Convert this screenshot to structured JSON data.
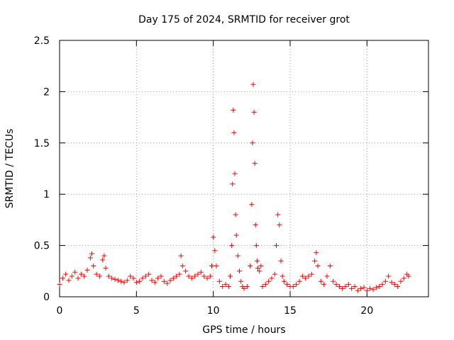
{
  "chart_data": {
    "type": "scatter",
    "title": "Day 175 of 2024, SRMTID for receiver grot",
    "xlabel": "GPS time / hours",
    "ylabel": "SRMTID / TECUs",
    "xlim": [
      0,
      24
    ],
    "ylim": [
      0,
      2.5
    ],
    "xticks": [
      0,
      5,
      10,
      15,
      20
    ],
    "xtick_labels": [
      "0",
      "5",
      "10",
      "15",
      "20"
    ],
    "yticks": [
      0,
      0.5,
      1,
      1.5,
      2,
      2.5
    ],
    "ytick_labels": [
      "0",
      "0.5",
      "1",
      "1.5",
      "2",
      "2.5"
    ],
    "grid": true,
    "marker": "+",
    "series": [
      {
        "name": "SRMTID",
        "color": "#ff0000",
        "x": [
          0.0,
          0.2,
          0.4,
          0.6,
          0.8,
          1.0,
          1.2,
          1.4,
          1.6,
          1.8,
          2.0,
          2.1,
          2.2,
          2.4,
          2.6,
          2.8,
          2.9,
          3.0,
          3.2,
          3.4,
          3.6,
          3.8,
          4.0,
          4.2,
          4.4,
          4.6,
          4.8,
          5.0,
          5.2,
          5.4,
          5.6,
          5.8,
          6.0,
          6.2,
          6.4,
          6.6,
          6.8,
          7.0,
          7.2,
          7.4,
          7.6,
          7.8,
          7.9,
          8.0,
          8.2,
          8.4,
          8.6,
          8.8,
          9.0,
          9.2,
          9.4,
          9.6,
          9.8,
          9.9,
          10.0,
          10.1,
          10.2,
          10.4,
          10.6,
          10.8,
          11.0,
          11.1,
          11.2,
          11.25,
          11.3,
          11.35,
          11.4,
          11.45,
          11.5,
          11.6,
          11.7,
          11.8,
          11.9,
          12.0,
          12.2,
          12.4,
          12.5,
          12.55,
          12.6,
          12.65,
          12.7,
          12.75,
          12.8,
          12.85,
          12.9,
          13.0,
          13.1,
          13.2,
          13.4,
          13.6,
          13.8,
          14.0,
          14.1,
          14.2,
          14.3,
          14.4,
          14.5,
          14.6,
          14.8,
          15.0,
          15.2,
          15.4,
          15.6,
          15.8,
          16.0,
          16.2,
          16.4,
          16.6,
          16.7,
          16.8,
          17.0,
          17.2,
          17.4,
          17.6,
          17.8,
          18.0,
          18.2,
          18.4,
          18.6,
          18.8,
          19.0,
          19.2,
          19.4,
          19.6,
          19.8,
          20.0,
          20.2,
          20.4,
          20.6,
          20.8,
          21.0,
          21.2,
          21.4,
          21.6,
          21.8,
          22.0,
          22.2,
          22.4,
          22.6,
          22.7
        ],
        "y": [
          0.12,
          0.18,
          0.22,
          0.16,
          0.2,
          0.24,
          0.18,
          0.22,
          0.2,
          0.26,
          0.38,
          0.42,
          0.3,
          0.22,
          0.2,
          0.36,
          0.4,
          0.28,
          0.2,
          0.18,
          0.17,
          0.16,
          0.15,
          0.14,
          0.16,
          0.2,
          0.18,
          0.14,
          0.15,
          0.18,
          0.2,
          0.22,
          0.16,
          0.14,
          0.18,
          0.2,
          0.15,
          0.13,
          0.16,
          0.18,
          0.2,
          0.22,
          0.4,
          0.3,
          0.25,
          0.2,
          0.18,
          0.2,
          0.22,
          0.24,
          0.2,
          0.18,
          0.2,
          0.3,
          0.58,
          0.45,
          0.3,
          0.15,
          0.1,
          0.12,
          0.1,
          0.2,
          0.5,
          1.1,
          1.82,
          1.6,
          1.2,
          0.8,
          0.6,
          0.4,
          0.25,
          0.15,
          0.1,
          0.08,
          0.1,
          0.3,
          0.9,
          1.5,
          2.07,
          1.8,
          1.3,
          0.7,
          0.5,
          0.35,
          0.28,
          0.25,
          0.3,
          0.1,
          0.12,
          0.15,
          0.18,
          0.22,
          0.5,
          0.8,
          0.7,
          0.35,
          0.2,
          0.15,
          0.12,
          0.1,
          0.1,
          0.12,
          0.15,
          0.2,
          0.18,
          0.2,
          0.22,
          0.35,
          0.43,
          0.3,
          0.15,
          0.12,
          0.2,
          0.3,
          0.15,
          0.12,
          0.1,
          0.08,
          0.1,
          0.12,
          0.08,
          0.1,
          0.06,
          0.08,
          0.09,
          0.06,
          0.08,
          0.07,
          0.09,
          0.1,
          0.12,
          0.15,
          0.2,
          0.14,
          0.12,
          0.1,
          0.15,
          0.18,
          0.22,
          0.2
        ]
      }
    ]
  }
}
